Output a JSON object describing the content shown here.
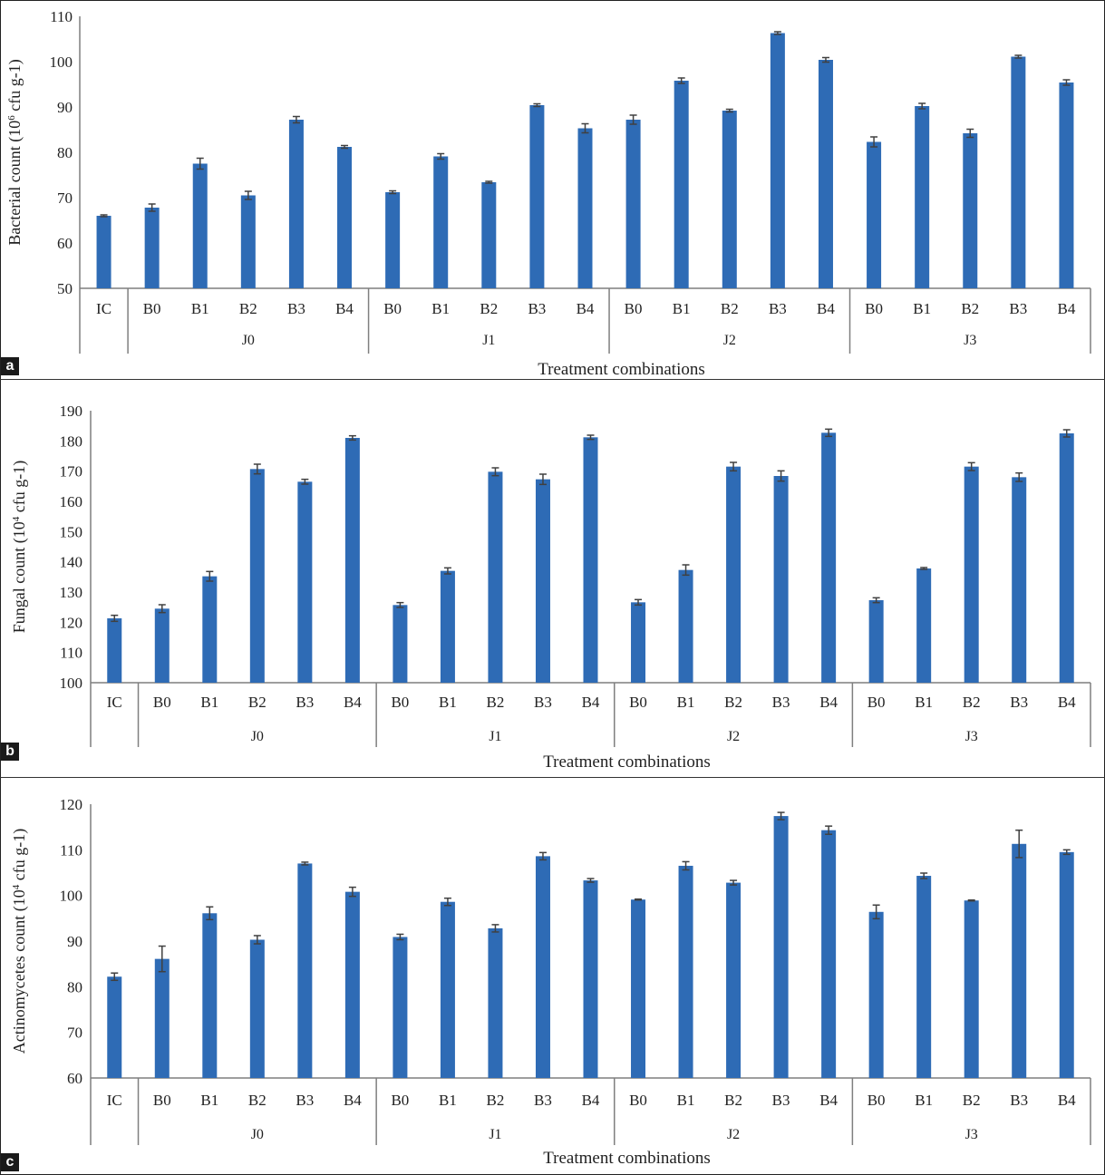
{
  "figure": {
    "x_title": "Treatment combinations",
    "bar_color": "#2E6BB5",
    "axis_color": "#7f7f7f",
    "error_color": "#404040"
  },
  "chart_data": [
    {
      "panel_label": "a",
      "type": "bar",
      "title": "",
      "ylabel_main": "Bacterial count (10",
      "ylabel_sup": "6",
      "ylabel_tail": " cfu g-1)",
      "xlabel": "Treatment combinations",
      "ylim": [
        50,
        110
      ],
      "yticks": [
        50,
        60,
        70,
        80,
        90,
        100,
        110
      ],
      "grid": false,
      "groups": [
        {
          "name": "",
          "categories": [
            "IC"
          ]
        },
        {
          "name": "J0",
          "categories": [
            "B0",
            "B1",
            "B2",
            "B3",
            "B4"
          ]
        },
        {
          "name": "J1",
          "categories": [
            "B0",
            "B1",
            "B2",
            "B3",
            "B4"
          ]
        },
        {
          "name": "J2",
          "categories": [
            "B0",
            "B1",
            "B2",
            "B3",
            "B4"
          ]
        },
        {
          "name": "J3",
          "categories": [
            "B0",
            "B1",
            "B2",
            "B3",
            "B4"
          ]
        }
      ],
      "values": [
        66,
        67.8,
        77.5,
        70.5,
        87.2,
        81.2,
        71.2,
        79.1,
        73.4,
        90.4,
        85.3,
        87.2,
        95.8,
        89.2,
        106.3,
        100.4,
        82.3,
        90.2,
        84.2,
        101.1,
        95.4
      ],
      "errors": [
        0.2,
        0.8,
        1.2,
        0.9,
        0.7,
        0.3,
        0.3,
        0.6,
        0.2,
        0.3,
        1.0,
        1.0,
        0.6,
        0.3,
        0.3,
        0.5,
        1.1,
        0.6,
        0.9,
        0.3,
        0.6
      ]
    },
    {
      "panel_label": "b",
      "type": "bar",
      "title": "",
      "ylabel_main": "Fungal count (10",
      "ylabel_sup": "4",
      "ylabel_tail": " cfu g-1)",
      "xlabel": "Treatment combinations",
      "ylim": [
        100,
        190
      ],
      "yticks": [
        100,
        110,
        120,
        130,
        140,
        150,
        160,
        170,
        180,
        190
      ],
      "grid": false,
      "groups": [
        {
          "name": "",
          "categories": [
            "IC"
          ]
        },
        {
          "name": "J0",
          "categories": [
            "B0",
            "B1",
            "B2",
            "B3",
            "B4"
          ]
        },
        {
          "name": "J1",
          "categories": [
            "B0",
            "B1",
            "B2",
            "B3",
            "B4"
          ]
        },
        {
          "name": "J2",
          "categories": [
            "B0",
            "B1",
            "B2",
            "B3",
            "B4"
          ]
        },
        {
          "name": "J3",
          "categories": [
            "B0",
            "B1",
            "B2",
            "B3",
            "B4"
          ]
        }
      ],
      "values": [
        121.3,
        124.5,
        135.2,
        170.7,
        166.5,
        181.0,
        125.7,
        137.0,
        169.8,
        167.3,
        181.2,
        126.6,
        137.3,
        171.5,
        168.4,
        182.7,
        127.3,
        137.8,
        171.5,
        168.0,
        182.5
      ],
      "errors": [
        1.0,
        1.3,
        1.6,
        1.6,
        0.8,
        0.7,
        0.8,
        1.0,
        1.3,
        1.7,
        0.7,
        0.9,
        1.7,
        1.4,
        1.7,
        1.2,
        0.8,
        0.3,
        1.3,
        1.4,
        1.2
      ]
    },
    {
      "panel_label": "c",
      "type": "bar",
      "title": "",
      "ylabel_main": "Actinomycetes count (10",
      "ylabel_sup": "4",
      "ylabel_tail": " cfu g-1)",
      "xlabel": "Treatment combinations",
      "ylim": [
        60,
        120
      ],
      "yticks": [
        60,
        70,
        80,
        90,
        100,
        110,
        120
      ],
      "grid": false,
      "groups": [
        {
          "name": "",
          "categories": [
            "IC"
          ]
        },
        {
          "name": "J0",
          "categories": [
            "B0",
            "B1",
            "B2",
            "B3",
            "B4"
          ]
        },
        {
          "name": "J1",
          "categories": [
            "B0",
            "B1",
            "B2",
            "B3",
            "B4"
          ]
        },
        {
          "name": "J2",
          "categories": [
            "B0",
            "B1",
            "B2",
            "B3",
            "B4"
          ]
        },
        {
          "name": "J3",
          "categories": [
            "B0",
            "B1",
            "B2",
            "B3",
            "B4"
          ]
        }
      ],
      "values": [
        82.2,
        86.1,
        96.1,
        90.3,
        107.0,
        100.8,
        90.9,
        98.6,
        92.8,
        108.6,
        103.3,
        99.1,
        106.5,
        102.8,
        117.4,
        114.3,
        96.4,
        104.3,
        98.9,
        111.3,
        109.5
      ],
      "errors": [
        0.8,
        2.8,
        1.4,
        0.9,
        0.3,
        1.0,
        0.6,
        0.8,
        0.8,
        0.8,
        0.4,
        0.1,
        0.9,
        0.5,
        0.8,
        0.9,
        1.5,
        0.6,
        0.1,
        3.0,
        0.5
      ]
    }
  ]
}
